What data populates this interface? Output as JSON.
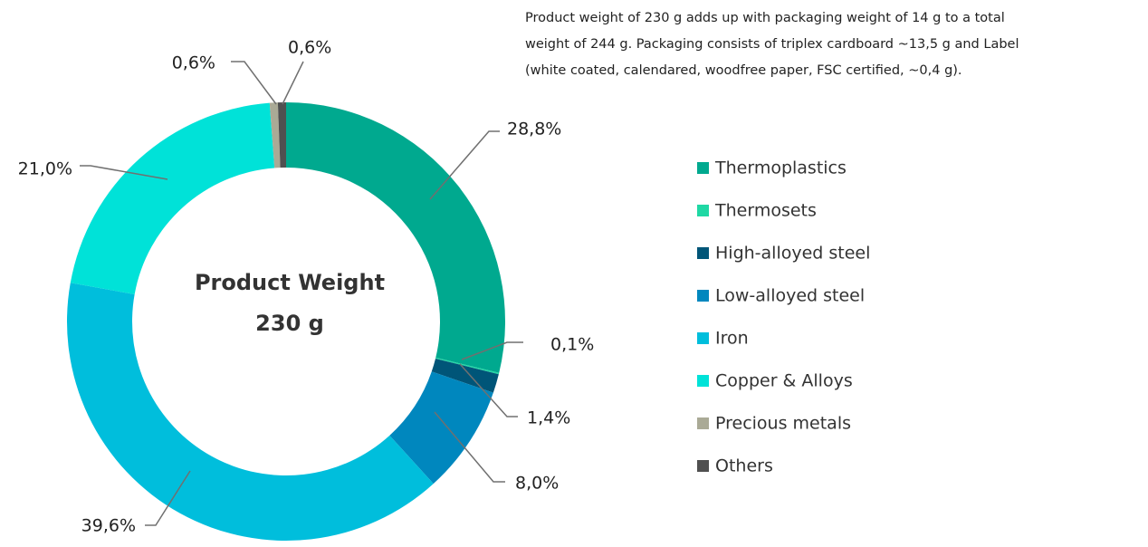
{
  "chart_data": {
    "type": "donut",
    "categories": [
      "Thermoplastics",
      "Thermosets",
      "High-alloyed steel",
      "Low-alloyed steel",
      "Iron",
      "Copper & Alloys",
      "Precious metals",
      "Others"
    ],
    "values": [
      28.8,
      0.1,
      1.4,
      8.0,
      39.6,
      21.0,
      0.6,
      0.6
    ],
    "value_labels": [
      "28,8%",
      "0,1%",
      "1,4%",
      "8,0%",
      "39,6%",
      "21,0%",
      "0,6%",
      "0,6%"
    ],
    "colors": [
      "#00a98f",
      "#1fd8a4",
      "#005578",
      "#0087be",
      "#00bedc",
      "#00e2d8",
      "#aaaa96",
      "#505050"
    ],
    "center_label": [
      "Product Weight",
      "230 g"
    ],
    "note": [
      "Product weight of 230 g adds up with packaging weight of 14 g to a total",
      "weight of 244 g. Packaging consists of triplex cardboard ~13,5 g  and Label",
      "(white coated, calendared, woodfree paper, FSC certified, ~0,4 g)."
    ]
  }
}
